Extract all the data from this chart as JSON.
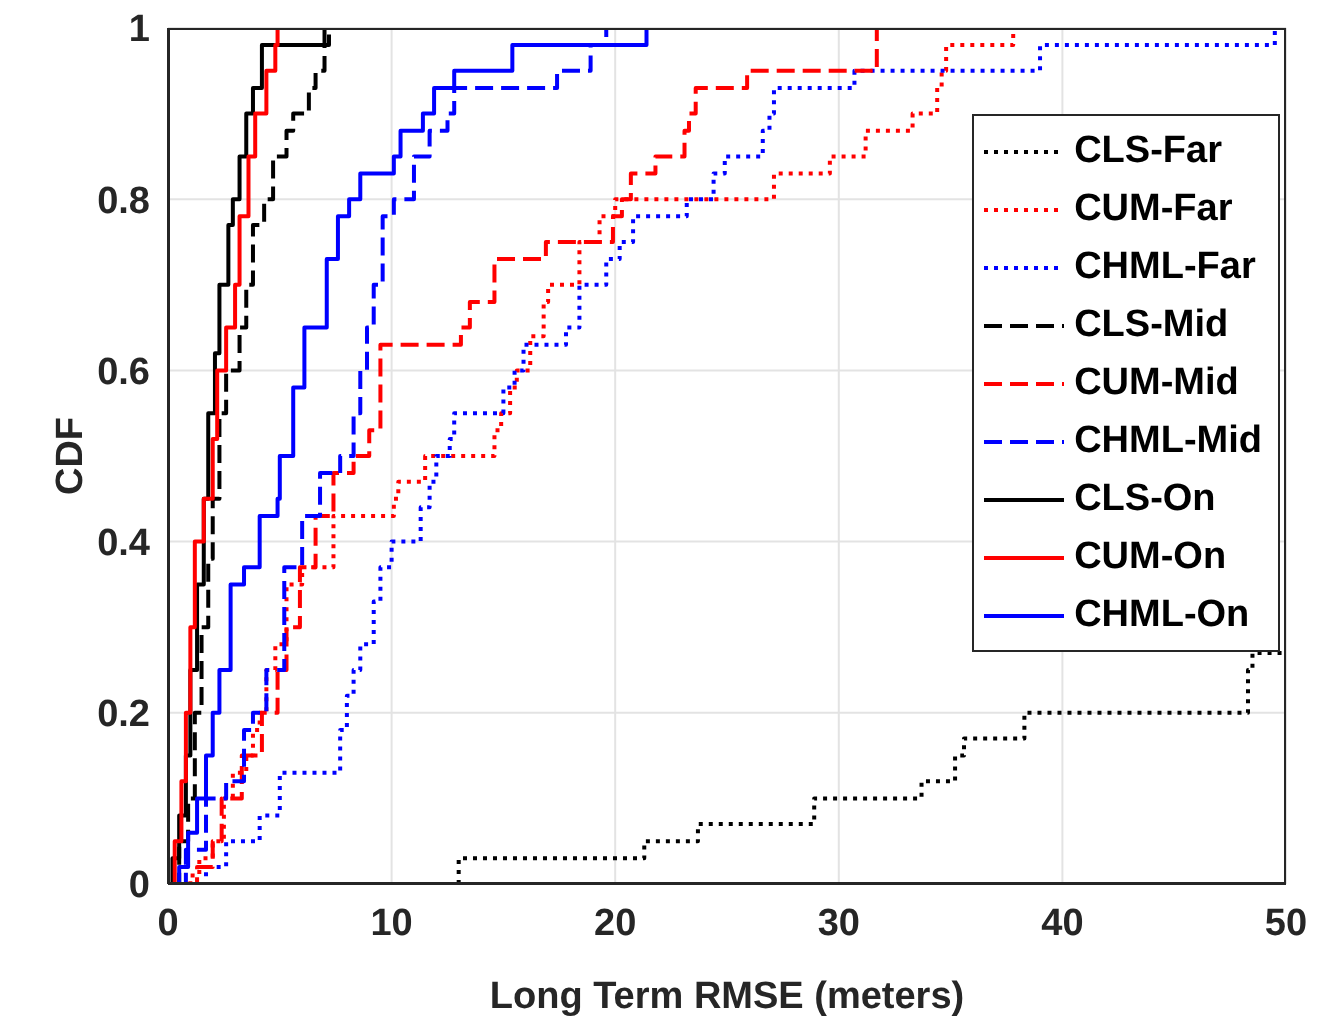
{
  "chart_data": {
    "type": "step",
    "xlabel": "Long Term RMSE (meters)",
    "ylabel": "CDF",
    "xlim": [
      0,
      50
    ],
    "xticks": [
      0,
      10,
      20,
      30,
      40,
      50
    ],
    "ylim": [
      0,
      1
    ],
    "yticks": [
      0,
      0.2,
      0.4,
      0.6,
      0.8,
      1
    ],
    "grid": true,
    "legend": "right",
    "series": [
      {
        "name": "CLS-Far",
        "color": "#000000",
        "line_style": "dotted",
        "x": [
          13,
          13,
          21.3,
          23.7,
          28.9,
          33.7,
          35.2,
          35.6,
          38.3,
          48.3,
          48.5,
          50
        ],
        "values": [
          0,
          0.03,
          0.05,
          0.07,
          0.1,
          0.12,
          0.15,
          0.17,
          0.2,
          0.25,
          0.27,
          0.27
        ]
      },
      {
        "name": "CUM-Far",
        "color": "#ff0000",
        "line_style": "dotted",
        "x": [
          0.5,
          1.0,
          1.4,
          2.0,
          2.5,
          2.9,
          3.5,
          3.8,
          4.1,
          4.4,
          4.8,
          5.3,
          6.0,
          7.4,
          10.1,
          10.3,
          11.5,
          14.6,
          14.9,
          15.3,
          15.6,
          16.2,
          16.8,
          17.0,
          18.4,
          19.3,
          20.0,
          27.1,
          29.6,
          31.2,
          33.3,
          34.4,
          34.6,
          34.8,
          37.8
        ],
        "values": [
          0,
          0.01,
          0.03,
          0.05,
          0.1,
          0.13,
          0.15,
          0.18,
          0.2,
          0.25,
          0.28,
          0.35,
          0.37,
          0.43,
          0.45,
          0.47,
          0.5,
          0.53,
          0.55,
          0.58,
          0.6,
          0.64,
          0.68,
          0.7,
          0.75,
          0.78,
          0.8,
          0.83,
          0.85,
          0.88,
          0.9,
          0.93,
          0.95,
          0.98,
          1
        ]
      },
      {
        "name": "CHML-Far",
        "color": "#0000ff",
        "line_style": "dotted",
        "x": [
          1.6,
          1.7,
          2.6,
          4.1,
          5.0,
          7.7,
          8.0,
          8.3,
          8.6,
          9.2,
          9.5,
          10.0,
          11.3,
          11.7,
          12.0,
          12.6,
          12.8,
          15.0,
          15.5,
          15.9,
          17.8,
          18.4,
          19.6,
          20.2,
          20.8,
          23.2,
          24.4,
          24.9,
          26.6,
          26.9,
          27.1,
          30.7,
          39.0,
          49.5
        ],
        "values": [
          0,
          0.02,
          0.05,
          0.08,
          0.13,
          0.18,
          0.22,
          0.25,
          0.28,
          0.33,
          0.37,
          0.4,
          0.44,
          0.47,
          0.5,
          0.52,
          0.55,
          0.58,
          0.6,
          0.63,
          0.65,
          0.7,
          0.73,
          0.75,
          0.78,
          0.8,
          0.83,
          0.85,
          0.88,
          0.9,
          0.93,
          0.95,
          0.98,
          1
        ]
      },
      {
        "name": "CLS-Mid",
        "color": "#000000",
        "line_style": "dashed",
        "x": [
          0.2,
          0.5,
          0.9,
          1.2,
          1.5,
          1.8,
          2.0,
          2.3,
          2.6,
          3.2,
          3.5,
          3.8,
          4.3,
          4.7,
          5.3,
          5.6,
          6.3,
          6.6,
          7.0,
          7.2
        ],
        "values": [
          0,
          0.05,
          0.1,
          0.2,
          0.3,
          0.38,
          0.45,
          0.55,
          0.6,
          0.65,
          0.7,
          0.77,
          0.8,
          0.85,
          0.88,
          0.9,
          0.93,
          0.95,
          0.98,
          1
        ]
      },
      {
        "name": "CUM-Mid",
        "color": "#ff0000",
        "line_style": "dashed",
        "x": [
          0.8,
          1.3,
          2.0,
          2.4,
          3.3,
          4.2,
          4.9,
          5.3,
          5.9,
          6.6,
          7.4,
          8.3,
          9.0,
          9.5,
          13.1,
          13.5,
          14.6,
          16.9,
          19.9,
          20.3,
          20.7,
          21.8,
          23.1,
          23.3,
          23.6,
          25.9,
          31.7
        ],
        "values": [
          0,
          0.02,
          0.05,
          0.1,
          0.15,
          0.2,
          0.25,
          0.3,
          0.37,
          0.43,
          0.48,
          0.5,
          0.53,
          0.63,
          0.65,
          0.68,
          0.73,
          0.75,
          0.78,
          0.8,
          0.83,
          0.85,
          0.88,
          0.9,
          0.93,
          0.95,
          1
        ]
      },
      {
        "name": "CHML-Mid",
        "color": "#0000ff",
        "line_style": "dashed",
        "x": [
          0.5,
          0.8,
          1.7,
          2.6,
          3.4,
          3.8,
          4.4,
          5.2,
          6.0,
          6.8,
          7.7,
          8.3,
          8.6,
          8.9,
          9.2,
          9.6,
          10.1,
          11.0,
          11.7,
          12.5,
          12.8,
          17.4,
          18.9,
          19.6
        ],
        "values": [
          0,
          0.04,
          0.1,
          0.12,
          0.18,
          0.2,
          0.25,
          0.37,
          0.43,
          0.48,
          0.5,
          0.55,
          0.6,
          0.65,
          0.7,
          0.78,
          0.8,
          0.85,
          0.88,
          0.9,
          0.93,
          0.95,
          0.98,
          1
        ]
      },
      {
        "name": "CLS-On",
        "color": "#000000",
        "line_style": "solid",
        "x": [
          0.1,
          0.2,
          0.5,
          0.8,
          1.0,
          1.3,
          1.6,
          1.8,
          2.1,
          2.3,
          2.7,
          2.9,
          3.2,
          3.5,
          3.8,
          4.2,
          7.0
        ],
        "values": [
          0,
          0.03,
          0.08,
          0.15,
          0.25,
          0.35,
          0.45,
          0.55,
          0.62,
          0.7,
          0.77,
          0.8,
          0.85,
          0.9,
          0.93,
          0.98,
          1
        ]
      },
      {
        "name": "CUM-On",
        "color": "#ff0000",
        "line_style": "solid",
        "x": [
          0.1,
          0.3,
          0.6,
          0.8,
          1.0,
          1.2,
          1.6,
          2.0,
          2.2,
          2.6,
          3.0,
          3.2,
          3.6,
          3.9,
          4.4,
          4.8,
          4.9
        ],
        "values": [
          0,
          0.05,
          0.12,
          0.2,
          0.3,
          0.4,
          0.45,
          0.52,
          0.6,
          0.65,
          0.7,
          0.78,
          0.85,
          0.9,
          0.95,
          0.98,
          1
        ]
      },
      {
        "name": "CHML-On",
        "color": "#0000ff",
        "line_style": "solid",
        "x": [
          0.3,
          0.5,
          0.9,
          1.3,
          1.7,
          2.0,
          2.3,
          2.8,
          3.4,
          4.1,
          4.9,
          5.0,
          5.6,
          6.1,
          7.1,
          7.6,
          8.1,
          8.6,
          10.1,
          10.4,
          11.4,
          11.9,
          12.8,
          15.4,
          21.4
        ],
        "values": [
          0,
          0.02,
          0.06,
          0.1,
          0.15,
          0.2,
          0.25,
          0.35,
          0.37,
          0.43,
          0.45,
          0.5,
          0.58,
          0.65,
          0.73,
          0.78,
          0.8,
          0.83,
          0.85,
          0.88,
          0.9,
          0.93,
          0.95,
          0.98,
          1
        ]
      }
    ]
  }
}
